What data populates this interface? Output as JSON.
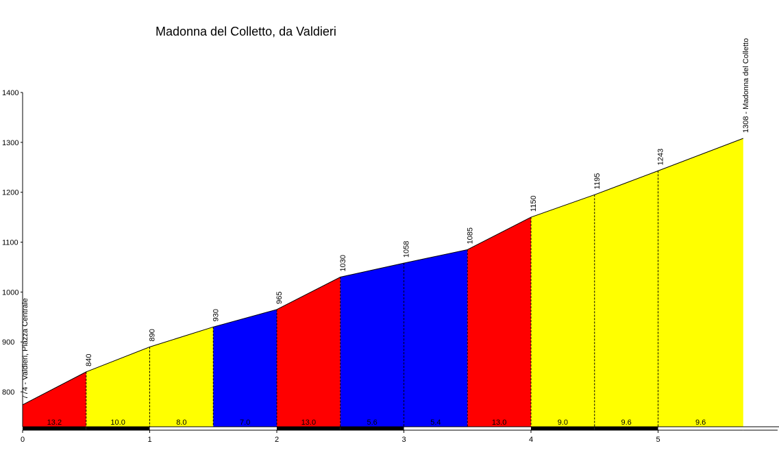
{
  "chart_data": {
    "type": "area",
    "title": "Madonna del Colletto, da Valdieri",
    "xlabel": "",
    "ylabel": "",
    "xlim": [
      0,
      5.95
    ],
    "ylim": [
      730,
      1400
    ],
    "x_ticks": [
      "0",
      "1",
      "2",
      "3",
      "4",
      "5"
    ],
    "y_ticks": [
      "800",
      "900",
      "1000",
      "1100",
      "1200",
      "1300",
      "1400"
    ],
    "profile": [
      {
        "km": 0.0,
        "alt": 774,
        "label": "774 - Valdieri, Piazza Centrale"
      },
      {
        "km": 0.5,
        "alt": 840,
        "label": "840"
      },
      {
        "km": 1.0,
        "alt": 890,
        "label": "890"
      },
      {
        "km": 1.5,
        "alt": 930,
        "label": "930"
      },
      {
        "km": 2.0,
        "alt": 965,
        "label": "965"
      },
      {
        "km": 2.5,
        "alt": 1030,
        "label": "1030"
      },
      {
        "km": 3.0,
        "alt": 1058,
        "label": "1058"
      },
      {
        "km": 3.5,
        "alt": 1085,
        "label": "1085"
      },
      {
        "km": 4.0,
        "alt": 1150,
        "label": "1150"
      },
      {
        "km": 4.5,
        "alt": 1195,
        "label": "1195"
      },
      {
        "km": 5.0,
        "alt": 1243,
        "label": "1243"
      },
      {
        "km": 5.67,
        "alt": 1308,
        "label": "1308 - Madonna del Colletto"
      }
    ],
    "segments": [
      {
        "from": 0.0,
        "to": 0.5,
        "grade": "13.2",
        "color": "#ff0000"
      },
      {
        "from": 0.5,
        "to": 1.0,
        "grade": "10.0",
        "color": "#ffff00"
      },
      {
        "from": 1.0,
        "to": 1.5,
        "grade": "8.0",
        "color": "#ffff00"
      },
      {
        "from": 1.5,
        "to": 2.0,
        "grade": "7.0",
        "color": "#0000ff"
      },
      {
        "from": 2.0,
        "to": 2.5,
        "grade": "13.0",
        "color": "#ff0000"
      },
      {
        "from": 2.5,
        "to": 3.0,
        "grade": "5.6",
        "color": "#0000ff"
      },
      {
        "from": 3.0,
        "to": 3.5,
        "grade": "5.4",
        "color": "#0000ff"
      },
      {
        "from": 3.5,
        "to": 4.0,
        "grade": "13.0",
        "color": "#ff0000"
      },
      {
        "from": 4.0,
        "to": 4.5,
        "grade": "9.0",
        "color": "#ffff00"
      },
      {
        "from": 4.5,
        "to": 5.0,
        "grade": "9.6",
        "color": "#ffff00"
      },
      {
        "from": 5.0,
        "to": 5.67,
        "grade": "9.6",
        "color": "#ffff00"
      }
    ],
    "km_bar_colors": [
      "#000000",
      "#ffffff"
    ]
  }
}
